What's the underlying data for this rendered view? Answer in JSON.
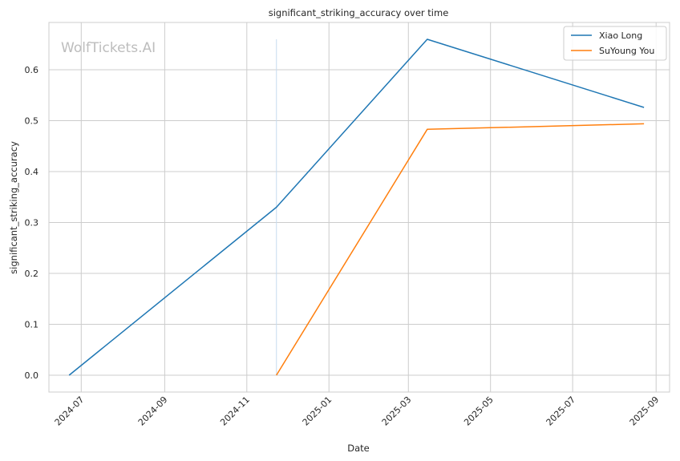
{
  "watermark": "WolfTickets.AI",
  "chart_data": {
    "type": "line",
    "title": "significant_striking_accuracy over time",
    "xlabel": "Date",
    "ylabel": "significant_striking_accuracy",
    "x_tick_labels": [
      "2024-07",
      "2024-09",
      "2024-11",
      "2025-01",
      "2025-03",
      "2025-05",
      "2025-07",
      "2025-09"
    ],
    "y_tick_labels": [
      "0.0",
      "0.1",
      "0.2",
      "0.3",
      "0.4",
      "0.5",
      "0.6"
    ],
    "y_ticks": [
      0.0,
      0.1,
      0.2,
      0.3,
      0.4,
      0.5,
      0.6
    ],
    "xlim": [
      "2024-06-07",
      "2025-09-11"
    ],
    "ylim": [
      -0.033,
      0.693
    ],
    "grid": true,
    "legend_position": "top-right",
    "series": [
      {
        "name": "Xiao Long",
        "color": "#1f77b4",
        "points": [
          {
            "date": "2024-06-22",
            "value": 0.0
          },
          {
            "date": "2024-11-23",
            "value": 0.33
          },
          {
            "date": "2025-03-15",
            "value": 0.66
          },
          {
            "date": "2025-08-23",
            "value": 0.526
          }
        ]
      },
      {
        "name": "SuYoung You",
        "color": "#ff7f0e",
        "points": [
          {
            "date": "2024-11-23",
            "value": 0.0
          },
          {
            "date": "2025-03-15",
            "value": 0.483
          },
          {
            "date": "2025-08-23",
            "value": 0.494
          }
        ]
      }
    ],
    "marker_line": {
      "date": "2024-11-23",
      "from": 0.0,
      "to": 0.66,
      "color": "#c6dbef"
    }
  }
}
